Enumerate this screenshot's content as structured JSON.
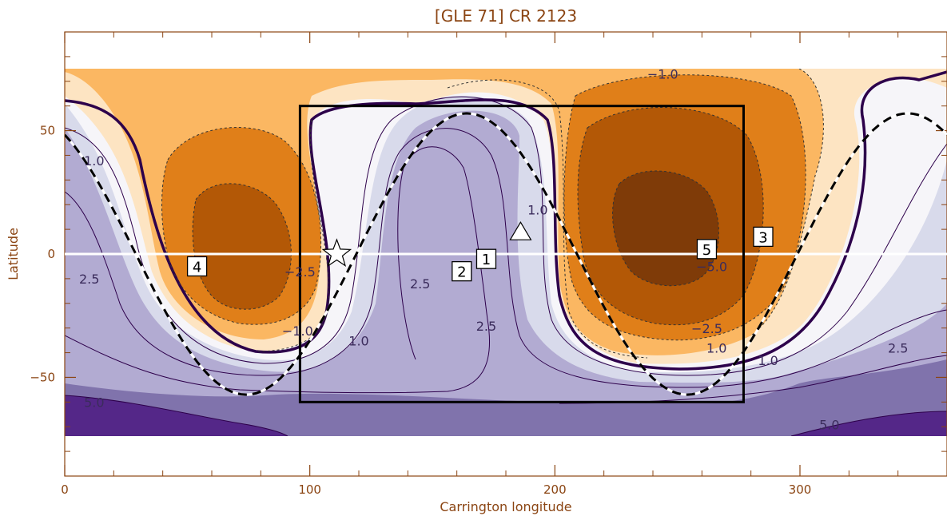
{
  "chart_data": {
    "type": "contour",
    "title": "[GLE 71] CR 2123",
    "xlabel": "Carrington longitude",
    "ylabel": "Latitude",
    "xlim": [
      0,
      360
    ],
    "ylim": [
      -90,
      90
    ],
    "xticks": [
      {
        "value": 0,
        "label": "0"
      },
      {
        "value": 100,
        "label": "100"
      },
      {
        "value": 200,
        "label": "200"
      },
      {
        "value": 300,
        "label": "300"
      }
    ],
    "yticks": [
      {
        "value": 50,
        "label": "50"
      },
      {
        "value": 0,
        "label": "0"
      },
      {
        "value": -50,
        "label": "−50"
      }
    ],
    "data_lat_range": [
      -75,
      75
    ],
    "colors": {
      "axis": "#8B4513",
      "neg_bands": [
        "#FDE4C2",
        "#FBB762",
        "#E07F19",
        "#B35806",
        "#7F3B08"
      ],
      "pos_bands": [
        "#F6F5F9",
        "#D8DAEB",
        "#B2ABD2",
        "#8073AC",
        "#542788"
      ],
      "neutral_line": "#2D004B"
    },
    "contour_labels": [
      {
        "text": "−1.0",
        "lon": 244,
        "lat": 71
      },
      {
        "text": "−2.5",
        "lon": 96,
        "lat": -9
      },
      {
        "text": "−1.0",
        "lon": 95,
        "lat": -33
      },
      {
        "text": "−2.5",
        "lon": 262,
        "lat": -32
      },
      {
        "text": "−5.0",
        "lon": 264,
        "lat": -7
      },
      {
        "text": "1.0",
        "lon": 12,
        "lat": 36
      },
      {
        "text": "2.5",
        "lon": 10,
        "lat": -12
      },
      {
        "text": "5.0",
        "lon": 12,
        "lat": -62
      },
      {
        "text": "1.0",
        "lon": 120,
        "lat": -37
      },
      {
        "text": "2.5",
        "lon": 145,
        "lat": -14
      },
      {
        "text": "2.5",
        "lon": 172,
        "lat": -31
      },
      {
        "text": "1.0",
        "lon": 193,
        "lat": 16
      },
      {
        "text": "1.0",
        "lon": 266,
        "lat": -40
      },
      {
        "text": "1.0",
        "lon": 287,
        "lat": -45
      },
      {
        "text": "2.5",
        "lon": 340,
        "lat": -40
      },
      {
        "text": "5.0",
        "lon": 312,
        "lat": -71
      }
    ],
    "boxed_labels": [
      {
        "text": "1",
        "lon": 172,
        "lat": -2
      },
      {
        "text": "2",
        "lon": 162,
        "lat": -7
      },
      {
        "text": "3",
        "lon": 285,
        "lat": 7
      },
      {
        "text": "4",
        "lon": 54,
        "lat": -5
      },
      {
        "text": "5",
        "lon": 262,
        "lat": 2
      }
    ],
    "markers": [
      {
        "shape": "star",
        "lon": 111,
        "lat": 0
      },
      {
        "shape": "triangle",
        "lon": 186,
        "lat": 9
      }
    ],
    "rectangle": {
      "lon": [
        96,
        277
      ],
      "lat": [
        -60,
        60
      ]
    },
    "equator_lat": 0
  }
}
